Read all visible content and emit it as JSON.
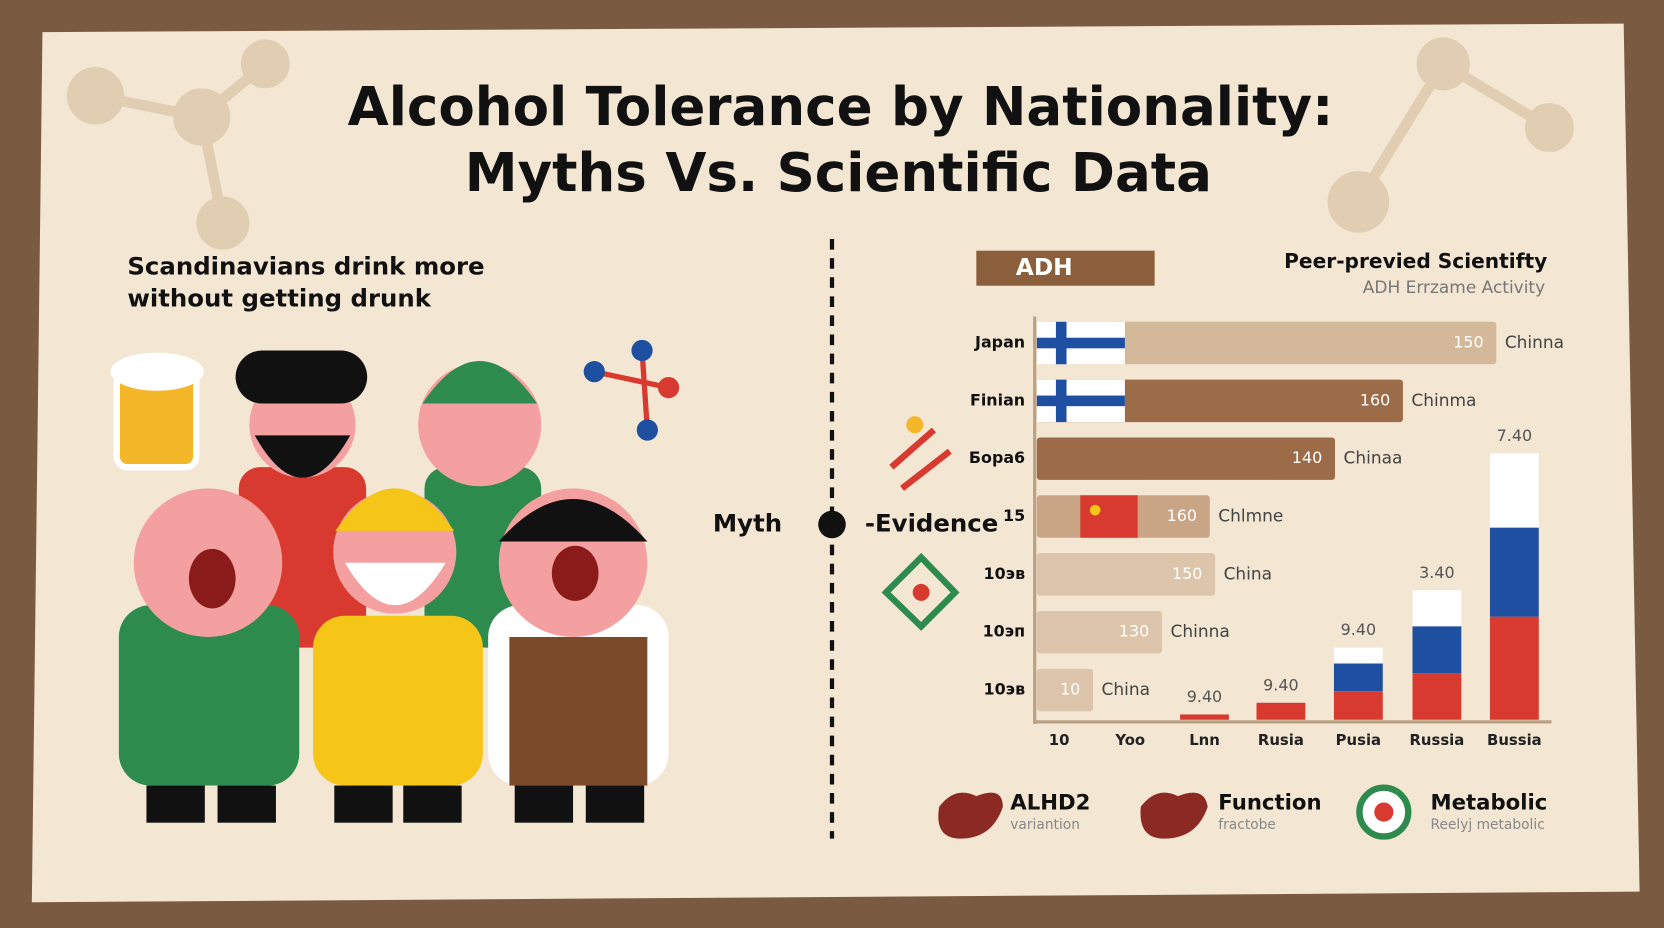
{
  "header": {
    "title": [
      "Alcohol Tolerance by Nationality:",
      "Myths Vs. Scientific Data"
    ]
  },
  "myth": {
    "text": [
      "Scandinavians drink more",
      "without getting drunk"
    ]
  },
  "divider": {
    "left": "Myth",
    "right": "-Evidence"
  },
  "panel": {
    "tag": "ADH",
    "source": "Peer-previed Scientifty",
    "subtitle": "ADH Errzame Activity"
  },
  "rows": [
    {
      "label": "Japan",
      "value": "150",
      "note": "Chinna"
    },
    {
      "label": "Finian",
      "value": "160",
      "note": "Chinma"
    },
    {
      "label": "Бора6",
      "value": "140",
      "note": "Chinaa"
    },
    {
      "label": "15",
      "value": "160",
      "note": "Chlmne"
    },
    {
      "label": "10эв",
      "value": "150",
      "note": "China"
    },
    {
      "label": "10эп",
      "value": "130",
      "note": "Chinna"
    },
    {
      "label": "10эв",
      "value": "10",
      "note": "China"
    }
  ],
  "columns": [
    {
      "label": "10"
    },
    {
      "label": "Yoo"
    },
    {
      "label": "Lnn",
      "value": "9.40"
    },
    {
      "label": "Rusia",
      "value": "9.40"
    },
    {
      "label": "Pusia",
      "value": "9.40"
    },
    {
      "label": "Russia",
      "value": "3.40"
    },
    {
      "label": "Bussia",
      "value": "7.40"
    }
  ],
  "legend": [
    {
      "title": "ALHD2",
      "subtitle": "variantion"
    },
    {
      "title": "Function",
      "subtitle": "fractobe"
    },
    {
      "title": "Metabolic",
      "subtitle": "Reelyj metabolic"
    }
  ]
}
